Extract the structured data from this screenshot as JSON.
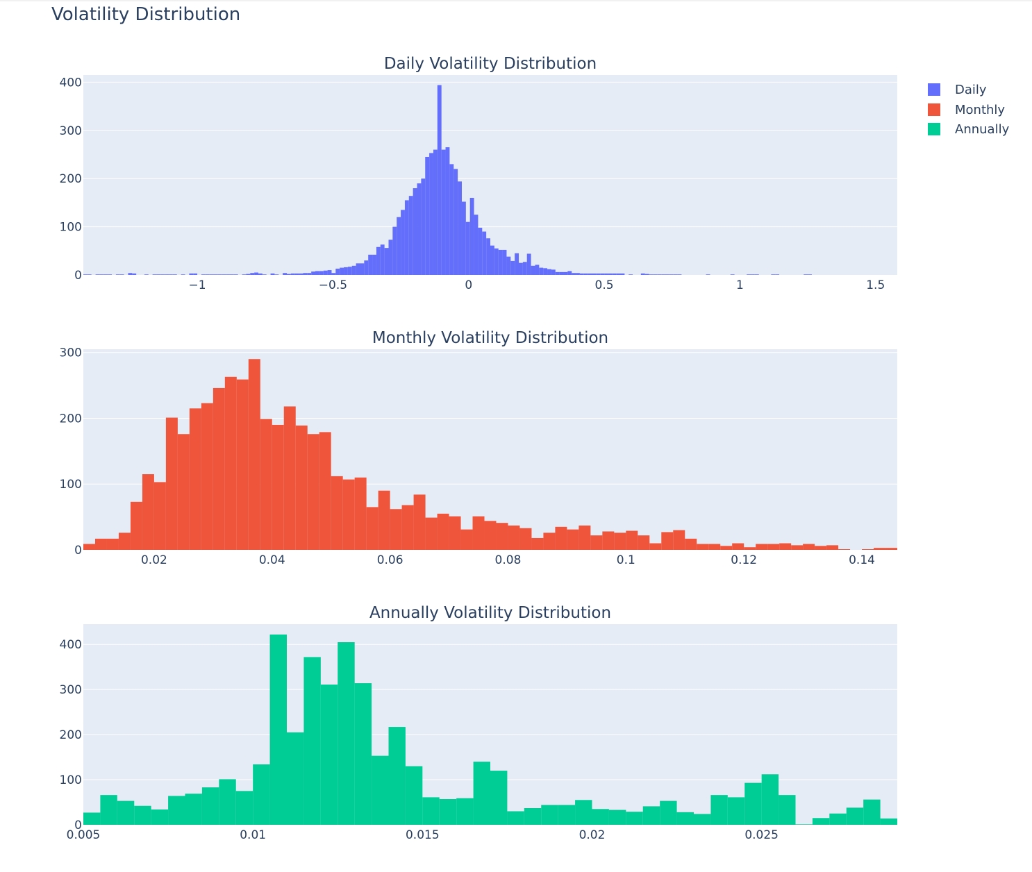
{
  "title": "Volatility Distribution",
  "legend": [
    {
      "label": "Daily",
      "color": "#636efa"
    },
    {
      "label": "Monthly",
      "color": "#ef553b"
    },
    {
      "label": "Annually",
      "color": "#00cc96"
    }
  ],
  "chart_data": [
    {
      "type": "bar",
      "title": "Daily Volatility Distribution",
      "series_name": "Daily",
      "color": "#636efa",
      "xlim": [
        -1.42,
        1.58
      ],
      "ylim": [
        0,
        415
      ],
      "xticks": [
        -1,
        -0.5,
        0,
        0.5,
        1,
        1.5
      ],
      "xtick_labels": [
        "−1",
        "−0.5",
        "0",
        "0.5",
        "1",
        "1.5"
      ],
      "yticks": [
        0,
        100,
        200,
        300,
        400
      ],
      "ytick_labels": [
        "0",
        "100",
        "200",
        "300",
        "400"
      ],
      "bin_start": -1.42,
      "bin_width": 0.015,
      "counts": [
        1,
        1,
        0,
        1,
        1,
        1,
        1,
        0,
        1,
        1,
        0,
        4,
        3,
        0,
        0,
        1,
        0,
        1,
        1,
        1,
        1,
        1,
        1,
        0,
        1,
        0,
        3,
        3,
        0,
        1,
        1,
        1,
        1,
        1,
        1,
        1,
        1,
        1,
        0,
        1,
        2,
        4,
        5,
        3,
        1,
        0,
        3,
        1,
        0,
        4,
        2,
        3,
        3,
        3,
        4,
        4,
        7,
        8,
        8,
        9,
        10,
        4,
        13,
        15,
        16,
        17,
        19,
        24,
        24,
        30,
        42,
        42,
        58,
        63,
        56,
        73,
        100,
        120,
        135,
        155,
        164,
        180,
        190,
        200,
        245,
        253,
        260,
        394,
        260,
        265,
        230,
        220,
        194,
        152,
        110,
        160,
        125,
        98,
        90,
        76,
        61,
        55,
        52,
        52,
        38,
        29,
        45,
        25,
        27,
        44,
        19,
        21,
        15,
        14,
        12,
        11,
        6,
        6,
        6,
        8,
        4,
        4,
        3,
        3,
        3,
        3,
        3,
        3,
        3,
        3,
        3,
        3,
        3,
        0,
        1,
        0,
        0,
        3,
        2,
        1,
        1,
        1,
        1,
        1,
        1,
        1,
        1,
        0,
        0,
        0,
        0,
        0,
        0,
        1,
        0,
        0,
        0,
        0,
        0,
        1,
        0,
        0,
        0,
        1,
        1,
        1,
        0,
        0,
        0,
        1,
        1,
        0,
        0,
        0,
        0,
        0,
        0,
        1,
        1,
        0,
        0,
        0,
        0,
        0,
        0,
        0,
        0,
        0,
        0,
        0,
        0,
        0,
        0,
        0,
        0,
        0,
        0,
        0,
        0,
        0,
        0
      ]
    },
    {
      "type": "bar",
      "title": "Monthly Volatility Distribution",
      "series_name": "Monthly",
      "color": "#ef553b",
      "xlim": [
        0.008,
        0.146
      ],
      "ylim": [
        0,
        305
      ],
      "xticks": [
        0.02,
        0.04,
        0.06,
        0.08,
        0.1,
        0.12,
        0.14
      ],
      "xtick_labels": [
        "0.02",
        "0.04",
        "0.06",
        "0.08",
        "0.1",
        "0.12",
        "0.14"
      ],
      "yticks": [
        0,
        100,
        200,
        300
      ],
      "ytick_labels": [
        "0",
        "100",
        "200",
        "300"
      ],
      "bin_start": 0.008,
      "bin_width": 0.002,
      "counts": [
        9,
        17,
        17,
        26,
        73,
        115,
        103,
        201,
        176,
        215,
        223,
        246,
        263,
        259,
        290,
        199,
        190,
        218,
        189,
        176,
        179,
        112,
        107,
        110,
        65,
        90,
        62,
        68,
        84,
        49,
        55,
        51,
        31,
        51,
        44,
        41,
        37,
        33,
        18,
        26,
        35,
        31,
        37,
        22,
        28,
        26,
        29,
        22,
        10,
        27,
        30,
        17,
        9,
        9,
        6,
        10,
        4,
        9,
        9,
        10,
        7,
        9,
        6,
        7,
        1,
        0,
        1,
        3,
        3,
        3
      ]
    },
    {
      "type": "bar",
      "title": "Annually Volatility Distribution",
      "series_name": "Annually",
      "color": "#00cc96",
      "xlim": [
        0.005,
        0.029
      ],
      "ylim": [
        0,
        445
      ],
      "xticks": [
        0.005,
        0.01,
        0.015,
        0.02,
        0.025
      ],
      "xtick_labels": [
        "0.005",
        "0.01",
        "0.015",
        "0.02",
        "0.025"
      ],
      "yticks": [
        0,
        100,
        200,
        300,
        400
      ],
      "ytick_labels": [
        "0",
        "100",
        "200",
        "300",
        "400"
      ],
      "bin_start": 0.005,
      "bin_width": 0.0005,
      "counts": [
        27,
        66,
        53,
        42,
        34,
        64,
        69,
        83,
        101,
        75,
        134,
        422,
        205,
        372,
        311,
        405,
        314,
        153,
        217,
        130,
        61,
        57,
        59,
        140,
        120,
        30,
        37,
        44,
        44,
        55,
        35,
        33,
        29,
        41,
        53,
        28,
        24,
        66,
        61,
        93,
        112,
        66,
        1,
        15,
        25,
        38,
        56,
        14
      ]
    }
  ]
}
